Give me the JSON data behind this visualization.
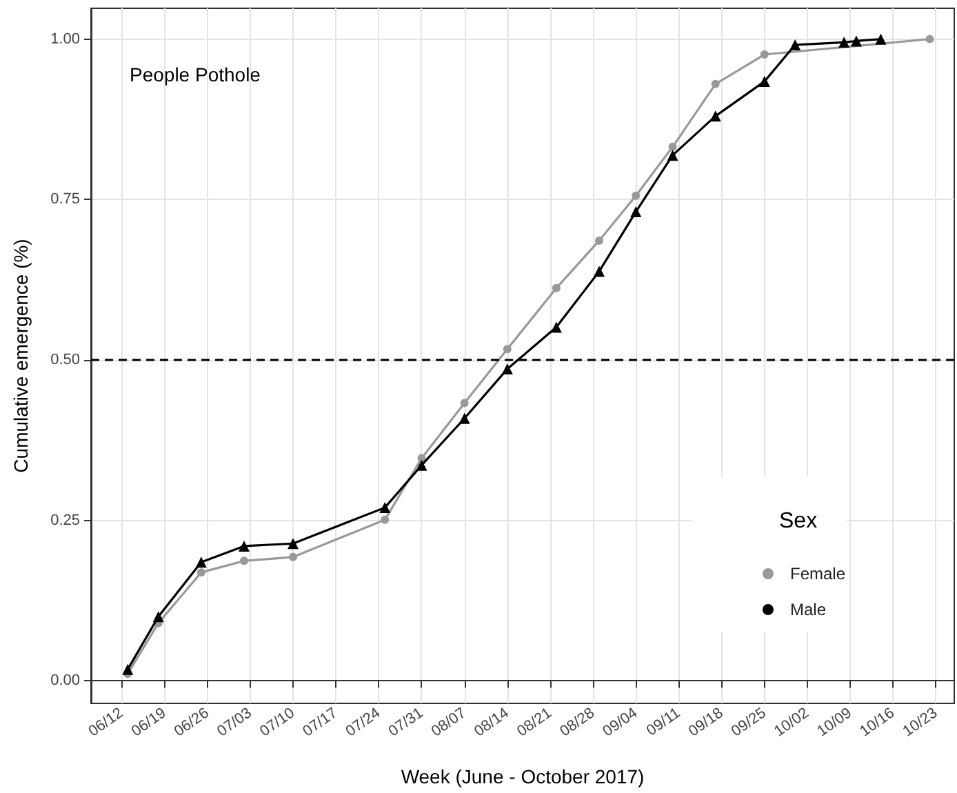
{
  "chart_data": {
    "type": "line",
    "xlabel": "Week (June - October 2017)",
    "ylabel": "Cumulative emergence (%)",
    "annotations": [
      "People Pothole"
    ],
    "legend_title": "Sex",
    "legend": "bottom right",
    "grid": true,
    "series": [
      {
        "name": "Female",
        "color": "#999999",
        "marker": "circle",
        "x": [
          "--06-13",
          "--06-18",
          "--06-25",
          "--07-02",
          "--07-10",
          "--07-25",
          "--07-31",
          "--08-07",
          "--08-14",
          "--08-22",
          "--08-29",
          "--09-04",
          "--09-10",
          "--09-17",
          "--09-25",
          "--09-30",
          "--10-14",
          "--10-22"
        ],
        "values": [
          0.011,
          0.09,
          0.169,
          0.187,
          0.193,
          0.251,
          0.347,
          0.433,
          0.517,
          0.612,
          0.686,
          0.756,
          0.832,
          0.93,
          0.976,
          null,
          null,
          1.0
        ]
      },
      {
        "name": "Male",
        "color": "#000000",
        "marker": "triangle",
        "x": [
          "--06-13",
          "--06-18",
          "--06-25",
          "--07-02",
          "--07-10",
          "--07-25",
          "--07-31",
          "--08-07",
          "--08-14",
          "--08-22",
          "--08-29",
          "--09-04",
          "--09-10",
          "--09-17",
          "--09-25",
          "--09-30",
          "--10-08",
          "--10-10",
          "--10-14"
        ],
        "values": [
          0.018,
          0.1,
          0.185,
          0.21,
          0.214,
          0.27,
          0.336,
          0.409,
          0.486,
          0.551,
          0.638,
          0.731,
          0.819,
          0.88,
          0.934,
          0.991,
          0.995,
          0.997,
          1.0
        ]
      }
    ],
    "ref_lines": [
      {
        "axis": "y",
        "value": 0.5,
        "color": "#000000",
        "line_style": "dashed"
      }
    ],
    "xlim": [
      "--06-07",
      "--10-26"
    ],
    "xticks": [
      {
        "value": "--06-12",
        "label": "06/12"
      },
      {
        "value": "--06-19",
        "label": "06/19"
      },
      {
        "value": "--06-26",
        "label": "06/26"
      },
      {
        "value": "--07-03",
        "label": "07/03"
      },
      {
        "value": "--07-10",
        "label": "07/10"
      },
      {
        "value": "--07-17",
        "label": "07/17"
      },
      {
        "value": "--07-24",
        "label": "07/24"
      },
      {
        "value": "--07-31",
        "label": "07/31"
      },
      {
        "value": "--08-07",
        "label": "08/07"
      },
      {
        "value": "--08-14",
        "label": "08/14"
      },
      {
        "value": "--08-21",
        "label": "08/21"
      },
      {
        "value": "--08-28",
        "label": "08/28"
      },
      {
        "value": "--09-04",
        "label": "09/04"
      },
      {
        "value": "--09-11",
        "label": "09/11"
      },
      {
        "value": "--09-18",
        "label": "09/18"
      },
      {
        "value": "--09-25",
        "label": "09/25"
      },
      {
        "value": "--10-02",
        "label": "10/02"
      },
      {
        "value": "--10-09",
        "label": "10/09"
      },
      {
        "value": "--10-16",
        "label": "10/16"
      },
      {
        "value": "--10-23",
        "label": "10/23"
      }
    ],
    "ylim": [
      -0.035,
      1.048
    ],
    "yticks": [
      {
        "value": 0,
        "label": "0.00"
      },
      {
        "value": 0.25,
        "label": "0.25"
      },
      {
        "value": 0.5,
        "label": "0.50"
      },
      {
        "value": 0.75,
        "label": "0.75"
      },
      {
        "value": 1,
        "label": "1.00"
      }
    ]
  }
}
